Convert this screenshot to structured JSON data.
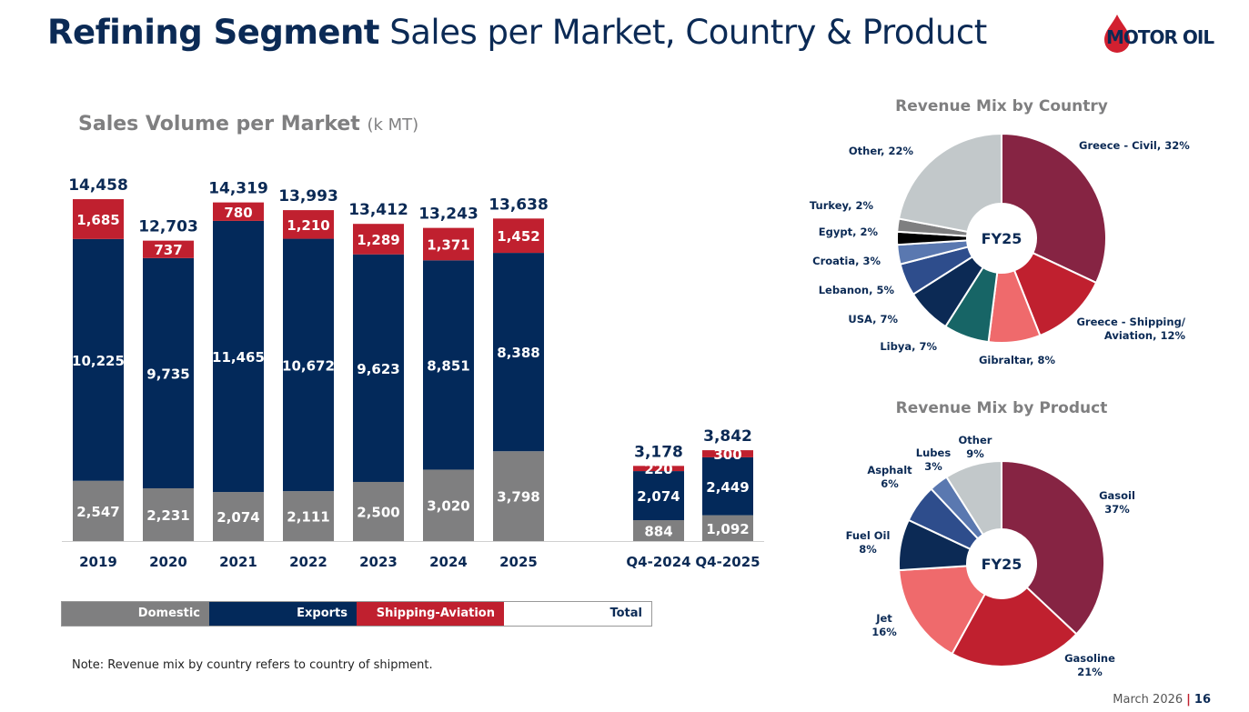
{
  "header": {
    "title_bold": "Refining Segment",
    "title_rest": " Sales per Market, Country & Product",
    "logo_text": "MOTOR OIL"
  },
  "colors": {
    "domestic": "#7f7f80",
    "exports": "#03295a",
    "shipping": "#c0202f",
    "navy": "#0b2a55"
  },
  "chart_data": [
    {
      "type": "bar",
      "stacked": true,
      "title": "Sales Volume per Market",
      "unit": "(k MT)",
      "categories": [
        "2019",
        "2020",
        "2021",
        "2022",
        "2023",
        "2024",
        "2025",
        "Q4-2024",
        "Q4-2025"
      ],
      "series": [
        {
          "name": "Domestic",
          "color": "#7f7f80",
          "values": [
            2547,
            2231,
            2074,
            2111,
            2500,
            3020,
            3798,
            884,
            1092
          ],
          "labels": [
            "2,547",
            "2,231",
            "2,074",
            "2,111",
            "2,500",
            "3,020",
            "3,798",
            "884",
            "1,092"
          ]
        },
        {
          "name": "Exports",
          "color": "#03295a",
          "values": [
            10225,
            9735,
            11465,
            10672,
            9623,
            8851,
            8388,
            2074,
            2449
          ],
          "labels": [
            "10,225",
            "9,735",
            "11,465",
            "10,672",
            "9,623",
            "8,851",
            "8,388",
            "2,074",
            "2,449"
          ]
        },
        {
          "name": "Shipping-Aviation",
          "color": "#c0202f",
          "values": [
            1685,
            737,
            780,
            1210,
            1289,
            1371,
            1452,
            220,
            300
          ],
          "labels": [
            "1,685",
            "737",
            "780",
            "1,210",
            "1,289",
            "1,371",
            "1,452",
            "220",
            "300"
          ]
        }
      ],
      "totals": {
        "name": "Total",
        "values": [
          14458,
          12703,
          14319,
          13993,
          13412,
          13243,
          13638,
          3178,
          3842
        ],
        "labels": [
          "14,458",
          "12,703",
          "14,319",
          "13,993",
          "13,412",
          "13,243",
          "13,638",
          "3,178",
          "3,842"
        ]
      },
      "legend": [
        "Domestic",
        "Exports",
        "Shipping-Aviation",
        "Total"
      ],
      "legend_placement": "bottom"
    },
    {
      "type": "pie",
      "donut": true,
      "title": "Revenue Mix by Country",
      "center_label": "FY25",
      "slices": [
        {
          "label": "Greece - Civil, 32%",
          "value": 32,
          "color": "#862443"
        },
        {
          "label": "Greece - Shipping/ Aviation, 12%",
          "value": 12,
          "color": "#c0202f"
        },
        {
          "label": "Gibraltar, 8%",
          "value": 8,
          "color": "#ef6a6c"
        },
        {
          "label": "Libya, 7%",
          "value": 7,
          "color": "#176566"
        },
        {
          "label": "USA, 7%",
          "value": 7,
          "color": "#0c2a55"
        },
        {
          "label": "Lebanon, 5%",
          "value": 5,
          "color": "#2e4d8c"
        },
        {
          "label": "Croatia, 3%",
          "value": 3,
          "color": "#5a78b0"
        },
        {
          "label": "Egypt, 2%",
          "value": 2,
          "color": "#000000"
        },
        {
          "label": "Turkey, 2%",
          "value": 2,
          "color": "#7f7f80"
        },
        {
          "label": "Other, 22%",
          "value": 22,
          "color": "#c2c8ca"
        }
      ]
    },
    {
      "type": "pie",
      "donut": true,
      "title": "Revenue Mix by Product",
      "center_label": "FY25",
      "slices": [
        {
          "label": "Gasoil|37%",
          "value": 37,
          "color": "#862443"
        },
        {
          "label": "Gasoline|21%",
          "value": 21,
          "color": "#c0202f"
        },
        {
          "label": "Jet|16%",
          "value": 16,
          "color": "#ef6a6c"
        },
        {
          "label": "Fuel Oil|8%",
          "value": 8,
          "color": "#0c2a55"
        },
        {
          "label": "Asphalt|6%",
          "value": 6,
          "color": "#2e4d8c"
        },
        {
          "label": "Lubes|3%",
          "value": 3,
          "color": "#5a78b0"
        },
        {
          "label": "Other|9%",
          "value": 9,
          "color": "#c2c8ca"
        }
      ]
    }
  ],
  "note": "Note: Revenue mix by country refers to country of shipment.",
  "footer": {
    "date": "March 2026",
    "separator": "|",
    "page": "16"
  }
}
